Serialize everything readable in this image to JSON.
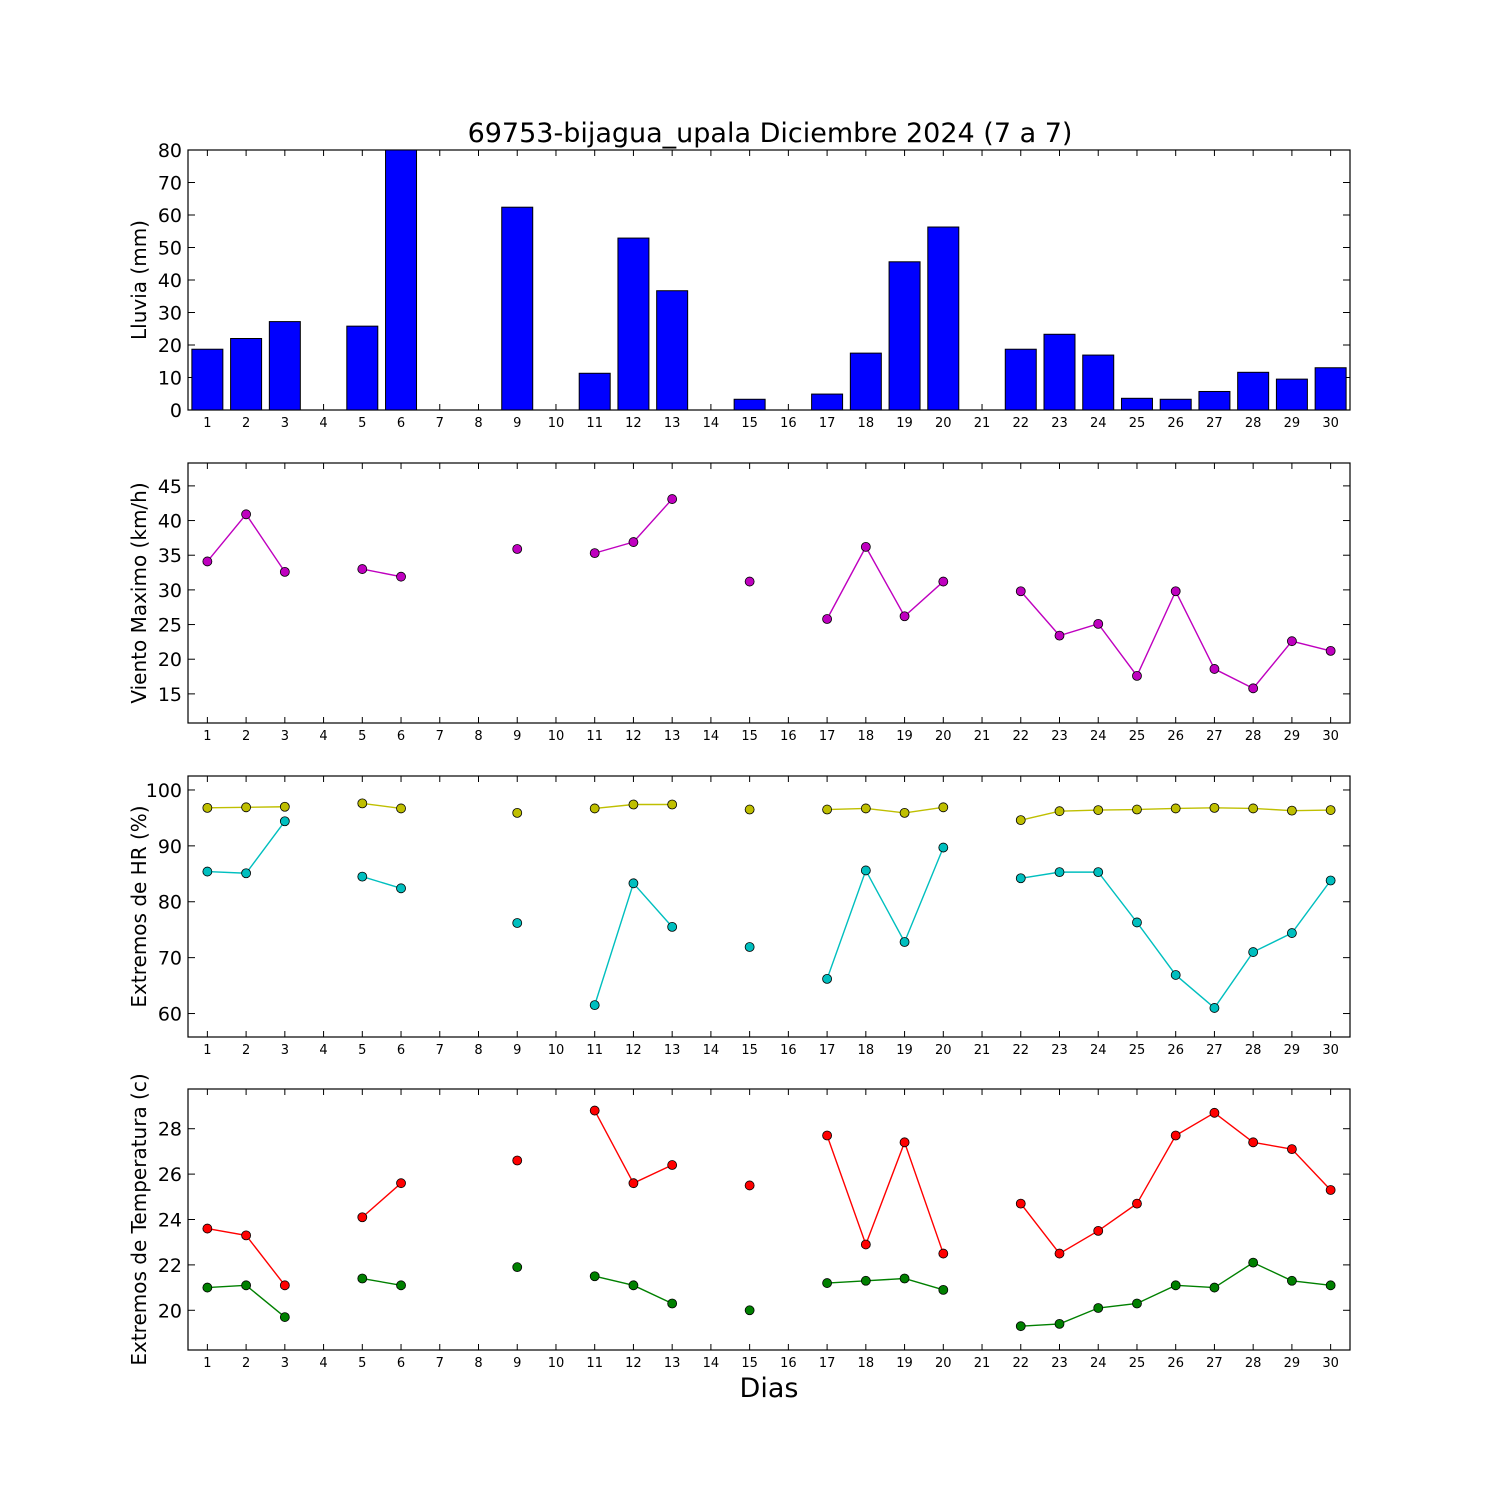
{
  "chart_data": {
    "title": "69753-bijagua_upala Diciembre 2024  (7 a 7)",
    "xlabel": "Dias",
    "days": [
      1,
      2,
      3,
      4,
      5,
      6,
      7,
      8,
      9,
      10,
      11,
      12,
      13,
      14,
      15,
      16,
      17,
      18,
      19,
      20,
      21,
      22,
      23,
      24,
      25,
      26,
      27,
      28,
      29,
      30
    ],
    "panels": [
      {
        "type": "bar",
        "ylabel": "Lluvia (mm)",
        "ylim": [
          0,
          80
        ],
        "yticks": [
          0,
          10,
          20,
          30,
          40,
          50,
          60,
          70,
          80
        ],
        "series": [
          {
            "color": "#0000ff",
            "values": [
              18.7,
              22.0,
              27.2,
              0,
              25.8,
              80,
              0,
              0,
              62.4,
              0,
              11.3,
              52.9,
              36.7,
              0,
              3.3,
              0,
              4.9,
              17.5,
              45.6,
              56.3,
              0,
              18.7,
              23.3,
              16.9,
              3.6,
              3.3,
              5.7,
              11.6,
              9.5,
              13.0
            ]
          }
        ]
      },
      {
        "type": "line",
        "ylabel": "Viento Maximo (km/h)",
        "ylim": [
          10.8,
          48.3
        ],
        "yticks": [
          15,
          20,
          25,
          30,
          35,
          40,
          45
        ],
        "series": [
          {
            "color": "#bf00bf",
            "values": [
              34.1,
              40.9,
              32.6,
              null,
              33.0,
              31.9,
              null,
              null,
              35.9,
              null,
              35.3,
              36.9,
              43.1,
              null,
              31.2,
              null,
              25.8,
              36.2,
              26.2,
              31.2,
              null,
              29.8,
              23.4,
              25.1,
              17.6,
              29.8,
              18.6,
              15.8,
              22.6,
              21.2
            ]
          }
        ]
      },
      {
        "type": "line",
        "ylabel": "Extremos de HR (%)",
        "ylim": [
          55.8,
          102.5
        ],
        "yticks": [
          60,
          70,
          80,
          90,
          100
        ],
        "series": [
          {
            "color": "#bfbf00",
            "values": [
              96.8,
              96.9,
              97.0,
              null,
              97.6,
              96.7,
              null,
              null,
              95.9,
              null,
              96.7,
              97.4,
              97.4,
              null,
              96.5,
              null,
              96.5,
              96.7,
              95.9,
              96.9,
              null,
              94.6,
              96.2,
              96.4,
              96.5,
              96.7,
              96.8,
              96.7,
              96.3,
              96.4
            ]
          },
          {
            "color": "#00bfbf",
            "values": [
              85.4,
              85.1,
              94.4,
              null,
              84.5,
              82.4,
              null,
              null,
              76.2,
              null,
              61.5,
              83.3,
              75.5,
              null,
              71.9,
              null,
              66.2,
              85.6,
              72.8,
              89.7,
              null,
              84.2,
              85.3,
              85.3,
              76.3,
              66.9,
              61.0,
              71.0,
              74.4,
              83.8
            ]
          }
        ]
      },
      {
        "type": "line",
        "ylabel": "Extremos de Temperatura (c)",
        "ylim": [
          18.25,
          29.75
        ],
        "yticks": [
          20,
          22,
          24,
          26,
          28
        ],
        "series": [
          {
            "color": "#ff0000",
            "values": [
              23.6,
              23.3,
              21.1,
              null,
              24.1,
              25.6,
              null,
              null,
              26.6,
              null,
              28.8,
              25.6,
              26.4,
              null,
              25.5,
              null,
              27.7,
              22.9,
              27.4,
              22.5,
              null,
              24.7,
              22.5,
              23.5,
              24.7,
              27.7,
              28.7,
              27.4,
              27.1,
              25.3
            ]
          },
          {
            "color": "#008000",
            "values": [
              21.0,
              21.1,
              19.7,
              null,
              21.4,
              21.1,
              null,
              null,
              21.9,
              null,
              21.5,
              21.1,
              20.3,
              null,
              20.0,
              null,
              21.2,
              21.3,
              21.4,
              20.9,
              null,
              19.3,
              19.4,
              20.1,
              20.3,
              21.1,
              21.0,
              22.1,
              21.3,
              21.1
            ]
          }
        ]
      }
    ]
  }
}
